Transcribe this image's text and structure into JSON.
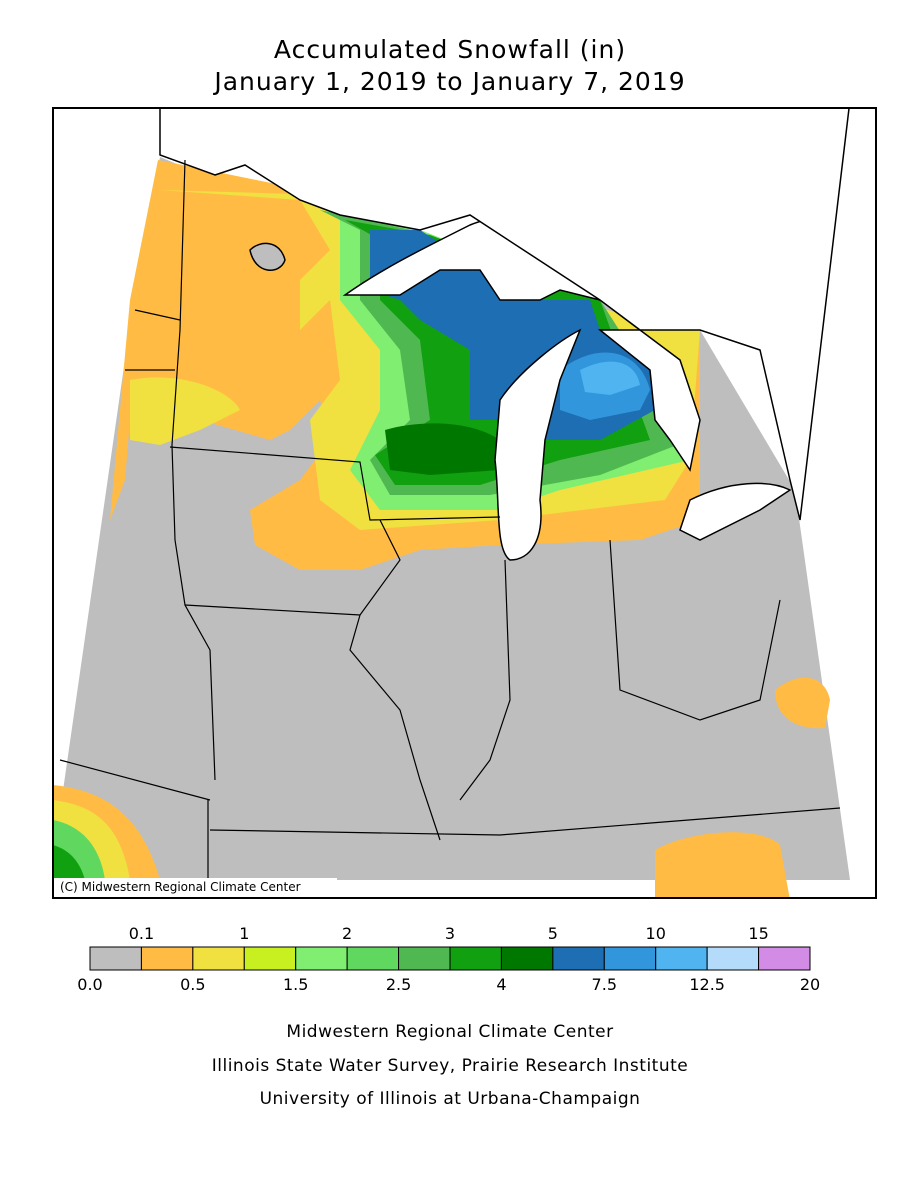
{
  "header": {
    "title": "Accumulated Snowfall (in)",
    "subtitle": "January 1, 2019 to January 7, 2019"
  },
  "map": {
    "credit": "(C) Midwestern Regional Climate Center"
  },
  "legend": {
    "labels": [
      "0.0",
      "0.1",
      "0.5",
      "1",
      "1.5",
      "2",
      "2.5",
      "3",
      "4",
      "5",
      "7.5",
      "10",
      "12.5",
      "15",
      "20"
    ],
    "colors": [
      "#bebebe",
      "#ffbb44",
      "#f0e040",
      "#c8f020",
      "#80ee70",
      "#60d860",
      "#50b850",
      "#10a010",
      "#007800",
      "#1e6eb4",
      "#3296dc",
      "#50b4f0",
      "#b4dcfa",
      "#d28ce6"
    ]
  },
  "footer": {
    "lines": [
      "Midwestern Regional Climate Center",
      "Illinois State Water Survey, Prairie Research Institute",
      "University of Illinois at Urbana-Champaign"
    ]
  }
}
